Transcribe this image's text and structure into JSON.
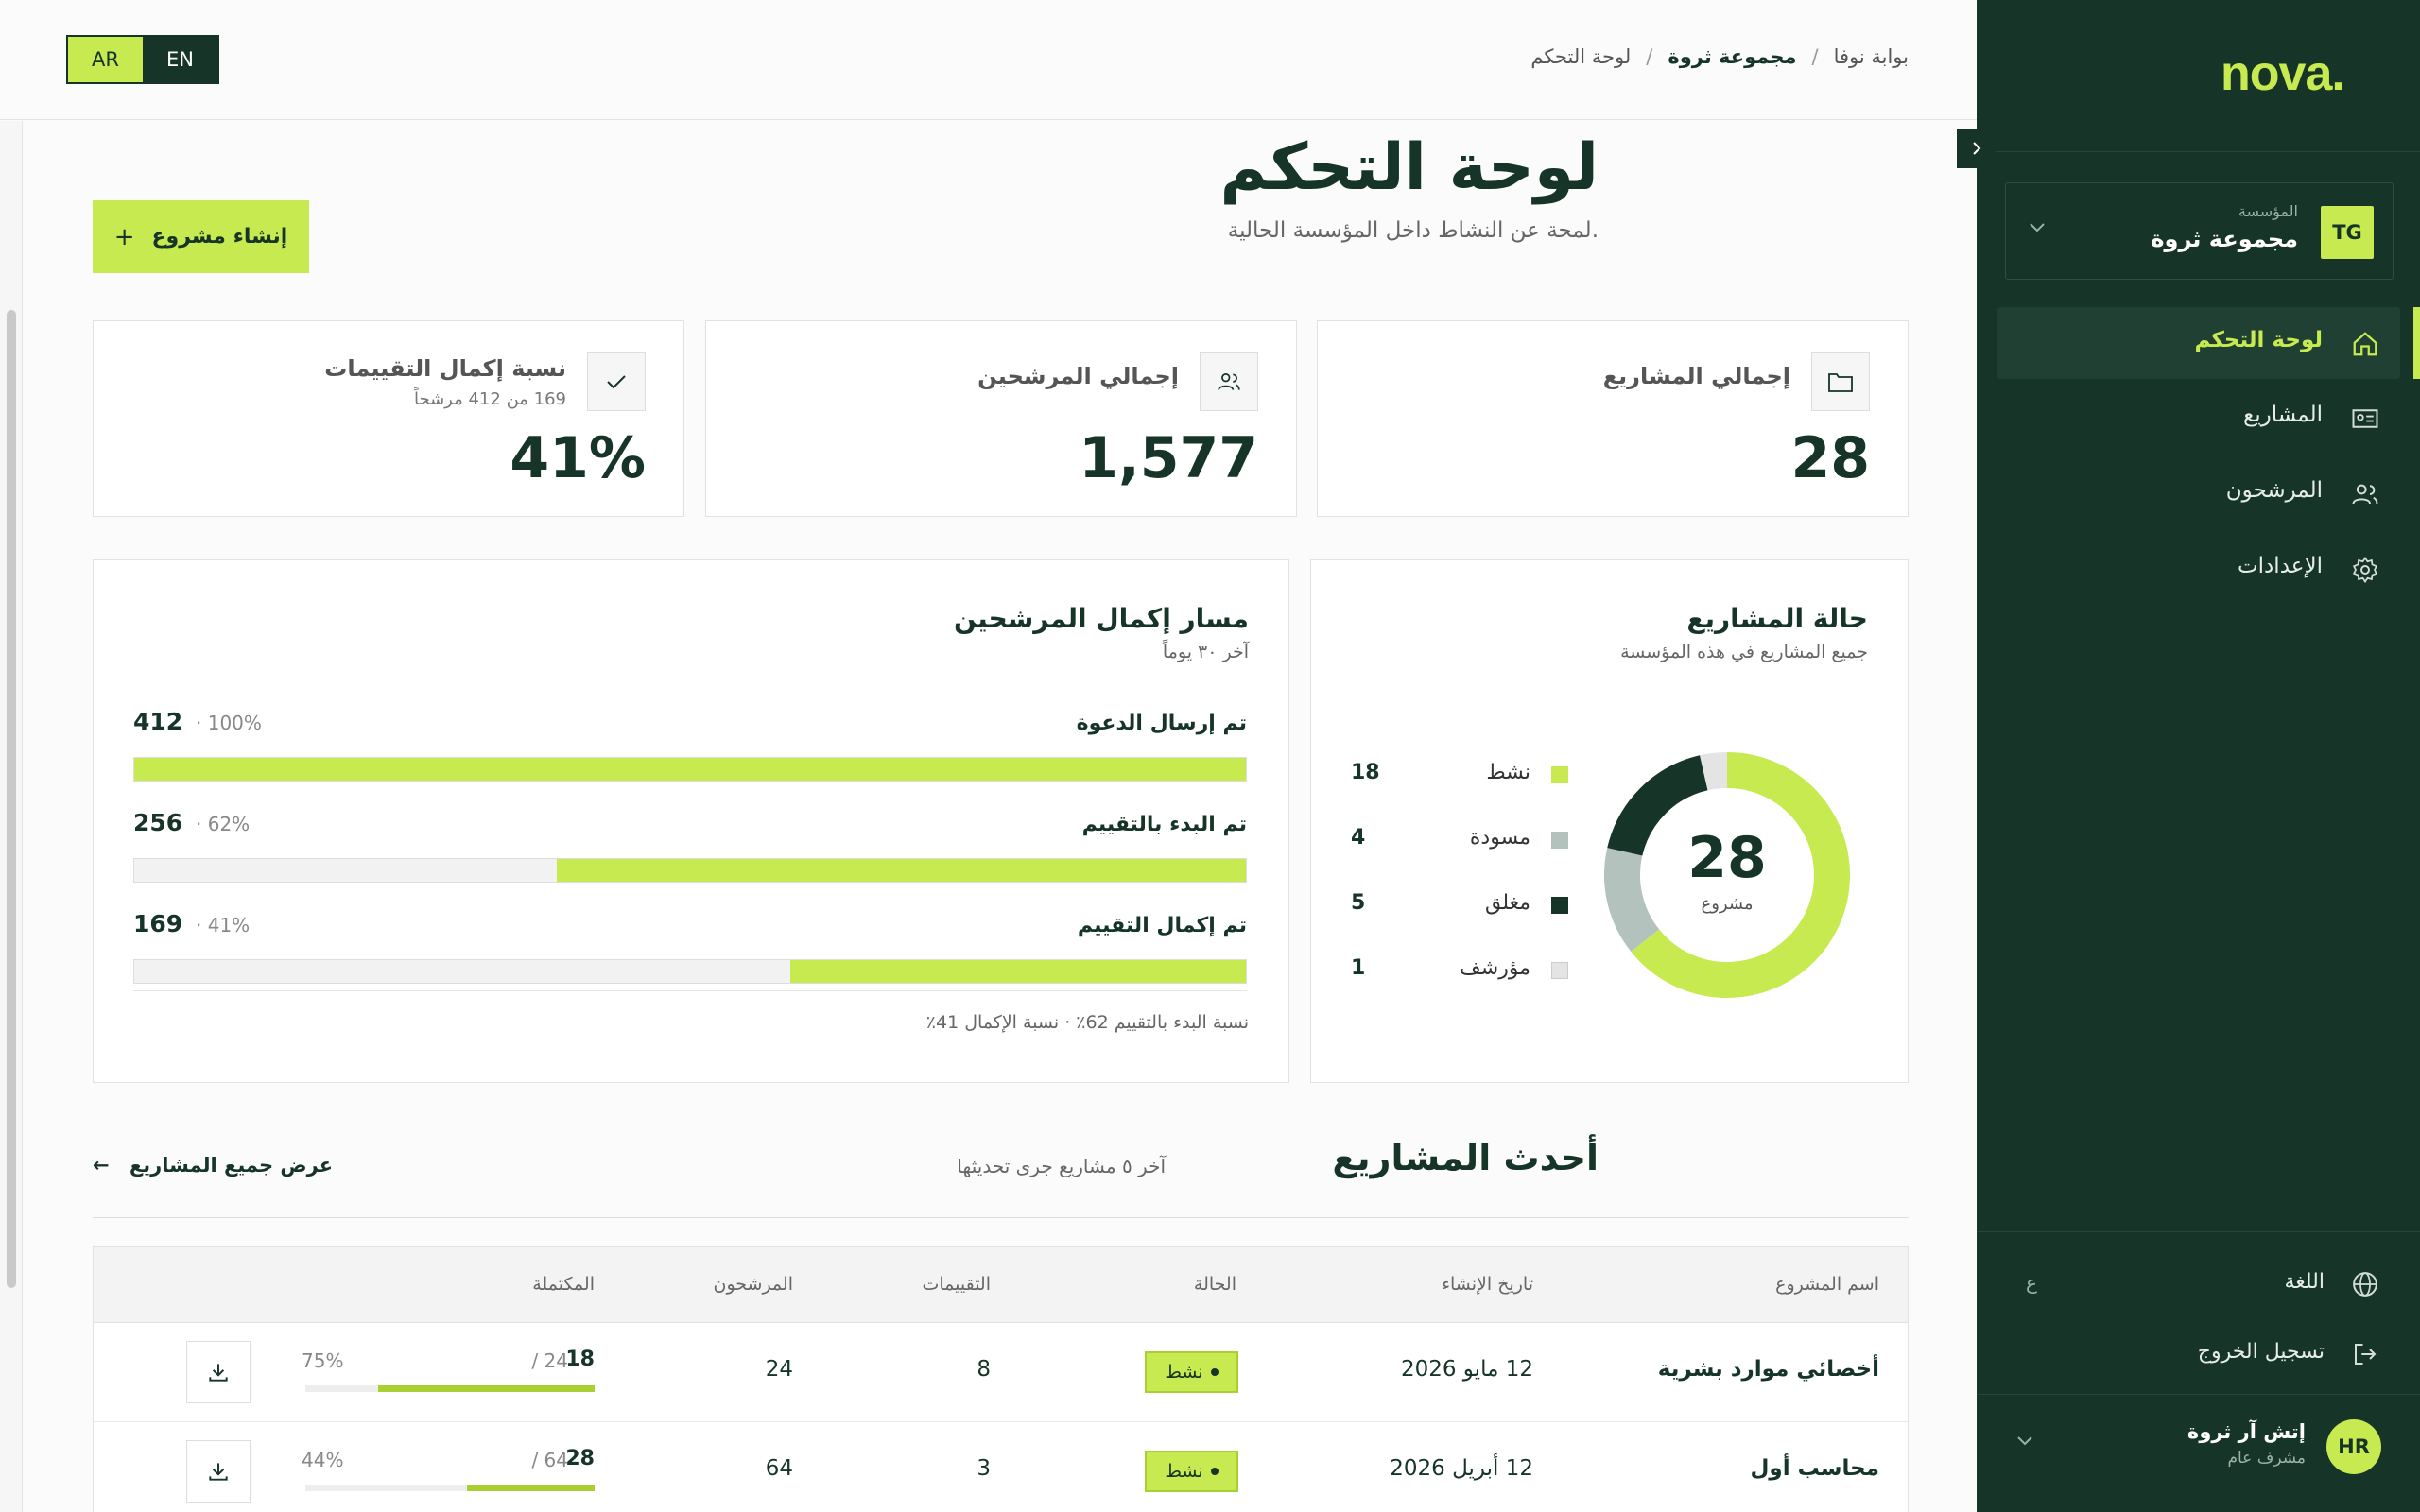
{
  "lang": {
    "ar": "AR",
    "en": "EN"
  },
  "breadcrumb": {
    "portal": "بوابة نوفا",
    "org": "مجموعة ثروة",
    "page": "لوحة التحكم",
    "sep": "/"
  },
  "sidebar": {
    "logo": "nova.",
    "org_label": "المؤسسة",
    "org_name": "مجموعة ثروة",
    "org_initials": "TG",
    "items": [
      {
        "label": "لوحة التحكم",
        "icon": "home-icon"
      },
      {
        "label": "المشاريع",
        "icon": "id-card-icon"
      },
      {
        "label": "المرشحون",
        "icon": "users-icon"
      },
      {
        "label": "الإعدادات",
        "icon": "gear-icon"
      }
    ],
    "language_label": "اللغة",
    "language_short": "ع",
    "logout_label": "تسجيل الخروج",
    "user_initials": "HR",
    "user_name": "إتش آر ثروة",
    "user_role": "مشرف عام"
  },
  "page": {
    "title": "لوحة التحكم",
    "subtitle": "لمحة عن النشاط داخل المؤسسة الحالية.",
    "new_project": "إنشاء مشروع",
    "plus": "+"
  },
  "stats": [
    {
      "label": "إجمالي المشاريع",
      "value": "28",
      "sub": ""
    },
    {
      "label": "إجمالي المرشحين",
      "value": "1,577",
      "sub": ""
    },
    {
      "label": "نسبة إكمال التقييمات",
      "value": "41%",
      "sub": "169 من 412 مرشحاً"
    }
  ],
  "status_card": {
    "title": "حالة المشاريع",
    "subtitle": "جميع المشاريع في هذه المؤسسة",
    "center_value": "28",
    "center_label": "مشروع"
  },
  "funnel_card": {
    "title": "مسار إكمال المرشحين",
    "subtitle": "آخر ٣٠ يوماً",
    "note": "نسبة البدء بالتقييم 62٪ · نسبة الإكمال 41٪"
  },
  "chart_data": {
    "type": "pie",
    "categories": [
      "نشط",
      "مسودة",
      "مغلق",
      "مؤرشف"
    ],
    "values": [
      18,
      4,
      5,
      1
    ],
    "colors": [
      "#c6ea4f",
      "#b4c2bd",
      "#163528",
      "#e4e4e4"
    ],
    "total": 28,
    "funnel": {
      "type": "bar",
      "categories": [
        "تم إرسال الدعوة",
        "تم البدء بالتقييم",
        "تم إكمال التقييم"
      ],
      "values": [
        412,
        256,
        169
      ],
      "percent_labels": [
        "· 100%",
        "· 62%",
        "· 41%"
      ],
      "fractions": [
        1.0,
        0.62,
        0.41
      ]
    }
  },
  "recent": {
    "title": "أحدث المشاريع",
    "subtitle": "آخر ٥ مشاريع جرى تحديثها",
    "view_all": "عرض جميع المشاريع",
    "arrow": "←",
    "columns": [
      "اسم المشروع",
      "تاريخ الإنشاء",
      "الحالة",
      "التقييمات",
      "المرشحون",
      "المكتملة"
    ],
    "rows": [
      {
        "name": "أخصائي موارد بشرية",
        "date": "12 مايو 2026",
        "status": "نشط",
        "evals": "8",
        "candidates": "24",
        "completed": "18",
        "total": "/ 24",
        "pct": "75%",
        "frac": 0.75
      },
      {
        "name": "محاسب أول",
        "date": "12 أبريل 2026",
        "status": "نشط",
        "evals": "3",
        "candidates": "64",
        "completed": "28",
        "total": "/ 64",
        "pct": "44%",
        "frac": 0.44
      }
    ]
  }
}
